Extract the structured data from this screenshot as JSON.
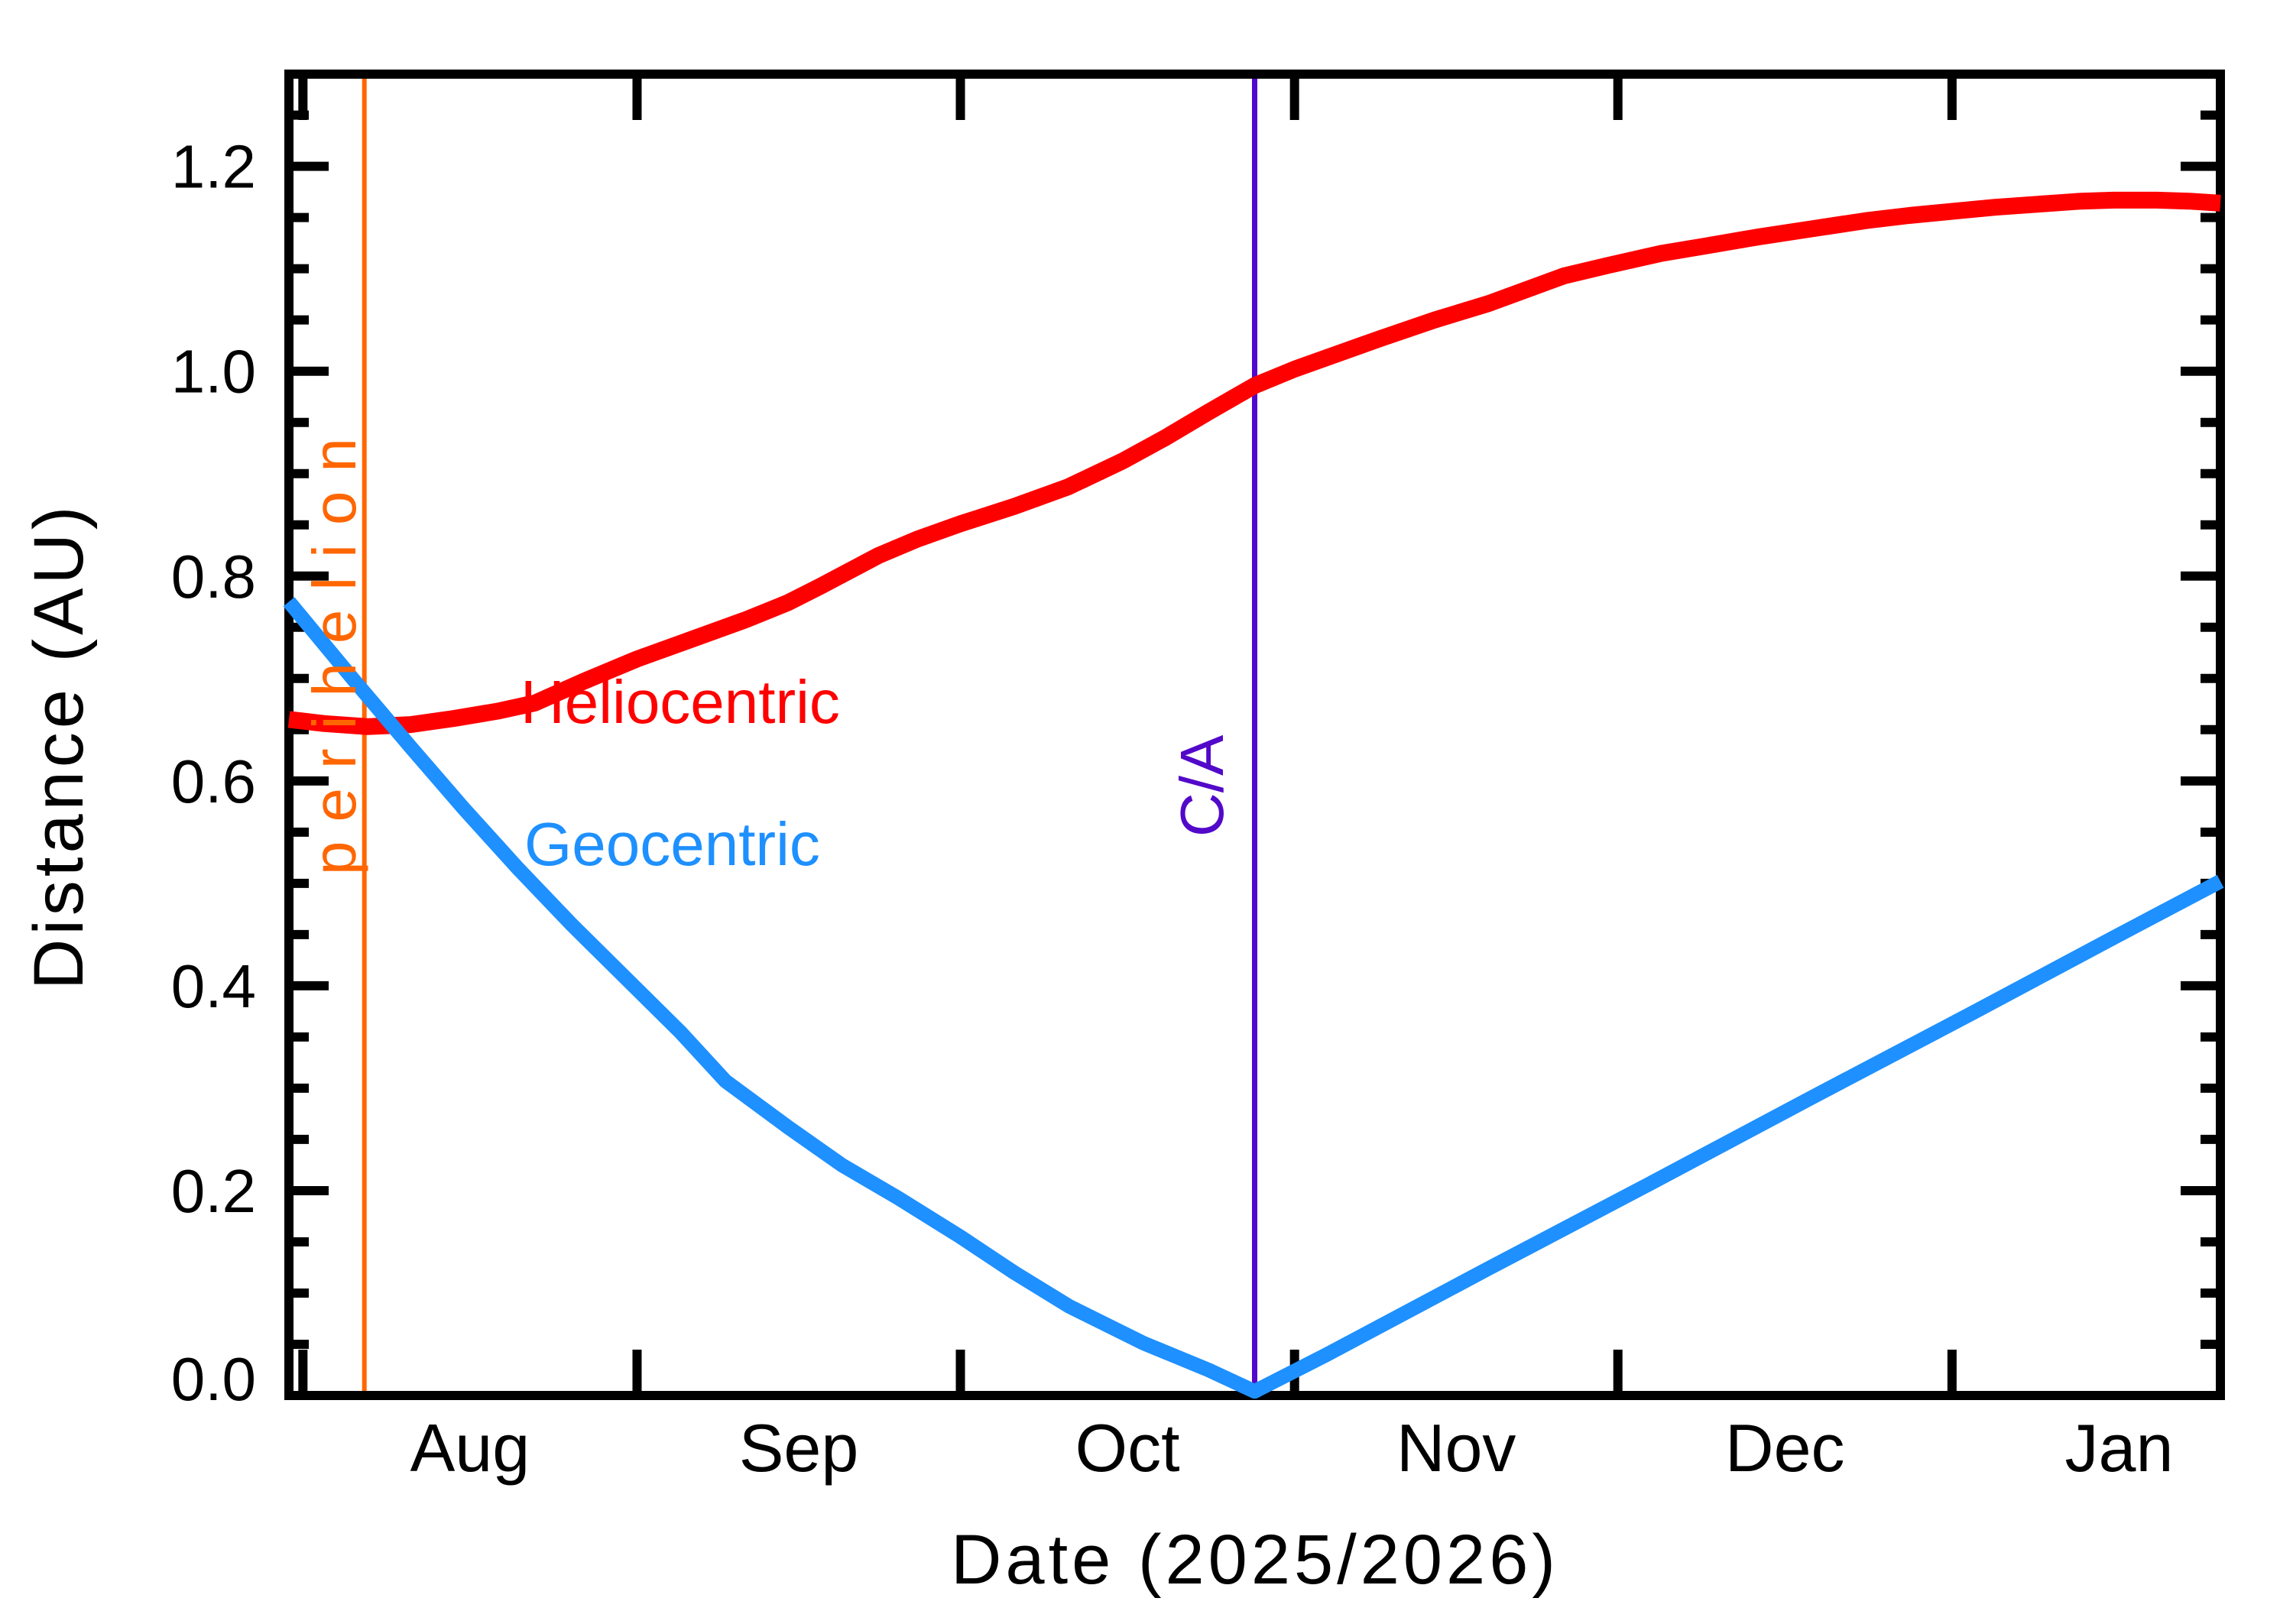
{
  "chart_data": {
    "type": "line",
    "title": "",
    "xlabel": "Date (2025/2026)",
    "ylabel": "Distance (AU)",
    "x_axis": {
      "unit": "days from 2025-Aug-01",
      "range_days": [
        -1.3,
        177.9
      ],
      "month_ticks": [
        {
          "label": "Aug",
          "start_day": 0,
          "days_in_month": 31
        },
        {
          "label": "Sep",
          "start_day": 31,
          "days_in_month": 30
        },
        {
          "label": "Oct",
          "start_day": 61,
          "days_in_month": 31
        },
        {
          "label": "Nov",
          "start_day": 92,
          "days_in_month": 30
        },
        {
          "label": "Dec",
          "start_day": 122,
          "days_in_month": 31
        },
        {
          "label": "Jan",
          "start_day": 153,
          "days_in_month": 31
        }
      ]
    },
    "y_axis": {
      "range": [
        0.0,
        1.29
      ],
      "major_tick_step": 0.2,
      "minor_tick_step": 0.05,
      "major_tick_labels": [
        "0.0",
        "0.2",
        "0.4",
        "0.6",
        "0.8",
        "1.0",
        "1.2"
      ],
      "grid": false
    },
    "legend_position": "labels on plot",
    "series": [
      {
        "name": "Heliocentric",
        "color": "#ff0000",
        "points_day_au": [
          [
            -1.3,
            0.66
          ],
          [
            2,
            0.656
          ],
          [
            6,
            0.653
          ],
          [
            10,
            0.655
          ],
          [
            14,
            0.661
          ],
          [
            18,
            0.668
          ],
          [
            21.5,
            0.676
          ],
          [
            26,
            0.697
          ],
          [
            31,
            0.719
          ],
          [
            36,
            0.738
          ],
          [
            41,
            0.757
          ],
          [
            45,
            0.774
          ],
          [
            48,
            0.79
          ],
          [
            53.4,
            0.82
          ],
          [
            57,
            0.836
          ],
          [
            61,
            0.851
          ],
          [
            66,
            0.868
          ],
          [
            71,
            0.887
          ],
          [
            76,
            0.912
          ],
          [
            80,
            0.935
          ],
          [
            84,
            0.96
          ],
          [
            88.3,
            0.986
          ],
          [
            92,
            1.002
          ],
          [
            96,
            1.017
          ],
          [
            100,
            1.032
          ],
          [
            105,
            1.05
          ],
          [
            110,
            1.066
          ],
          [
            117,
            1.093
          ],
          [
            121,
            1.103
          ],
          [
            126,
            1.115
          ],
          [
            130,
            1.122
          ],
          [
            135,
            1.131
          ],
          [
            140,
            1.139
          ],
          [
            145,
            1.147
          ],
          [
            149,
            1.152
          ],
          [
            153,
            1.156
          ],
          [
            157,
            1.16
          ],
          [
            161,
            1.163
          ],
          [
            165,
            1.166
          ],
          [
            168,
            1.167
          ],
          [
            172,
            1.167
          ],
          [
            175,
            1.166
          ],
          [
            177.9,
            1.164
          ]
        ]
      },
      {
        "name": "Geocentric",
        "color": "#1e90ff",
        "points_day_au": [
          [
            -1.3,
            0.775
          ],
          [
            5,
            0.695
          ],
          [
            10,
            0.633
          ],
          [
            15,
            0.572
          ],
          [
            20,
            0.514
          ],
          [
            25,
            0.459
          ],
          [
            30,
            0.407
          ],
          [
            35,
            0.355
          ],
          [
            39.2,
            0.307
          ],
          [
            45,
            0.262
          ],
          [
            50,
            0.225
          ],
          [
            55.2,
            0.193
          ],
          [
            61,
            0.155
          ],
          [
            66,
            0.12
          ],
          [
            71.1,
            0.087
          ],
          [
            78,
            0.051
          ],
          [
            84,
            0.025
          ],
          [
            88.3,
            0.004
          ],
          [
            95,
            0.04
          ],
          [
            110,
            0.124
          ],
          [
            125,
            0.207
          ],
          [
            140,
            0.291
          ],
          [
            155,
            0.374
          ],
          [
            168,
            0.447
          ],
          [
            177.9,
            0.502
          ]
        ]
      }
    ],
    "annotations": [
      {
        "id": "perihelion",
        "label": "perihelion",
        "day": 5.7,
        "color": "#ff6600",
        "type": "vertical-line"
      },
      {
        "id": "closest-approach",
        "label": "C/A",
        "day": 88.3,
        "color": "#5209c9",
        "type": "vertical-line"
      }
    ]
  },
  "labels": {
    "heliocentric": "Heliocentric",
    "geocentric": "Geocentric"
  }
}
